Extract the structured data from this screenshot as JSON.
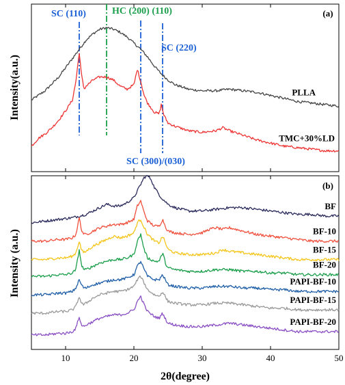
{
  "chart_data": {
    "type": "line",
    "xlabel": "2θ(degree)",
    "xlim": [
      5,
      50
    ],
    "xticks": [
      10,
      20,
      30,
      40,
      50
    ],
    "grid": false,
    "panels": [
      {
        "panel_label": "(a)",
        "ylabel": "Intensity(a.u.)",
        "ylim": [
          0,
          100
        ],
        "series": [
          {
            "name": "PLLA",
            "color": "#444444",
            "x": [
              5,
              7,
              9,
              11,
              12,
              13,
              14,
              15,
              16,
              17,
              18,
              19,
              20,
              21,
              22,
              23,
              24,
              25,
              26,
              28,
              30,
              32,
              34,
              36,
              38,
              40,
              42,
              44,
              46,
              48,
              50
            ],
            "y": [
              43,
              49,
              58,
              70,
              76,
              82,
              86,
              89,
              90,
              89,
              87,
              84,
              80,
              76,
              71,
              65,
              60,
              56,
              53,
              50,
              49,
              49,
              50,
              49,
              48,
              46,
              44,
              42,
              41,
              40,
              39
            ]
          },
          {
            "name": "TMC+30%LD",
            "color": "#ee3333",
            "x": [
              5,
              6,
              7,
              8,
              9,
              10,
              11,
              11.5,
              12,
              12.3,
              12.7,
              13,
              14,
              15,
              16,
              17,
              18,
              19,
              20,
              20.5,
              21,
              21.5,
              22,
              23,
              23.7,
              24,
              24.4,
              25,
              26,
              28,
              30,
              32,
              33,
              34,
              36,
              38,
              40,
              42,
              44,
              46,
              48,
              50
            ],
            "y": [
              13,
              18,
              21,
              25,
              30,
              36,
              43,
              55,
              74,
              60,
              50,
              52,
              56,
              58,
              58,
              56,
              52,
              50,
              53,
              63,
              55,
              46,
              41,
              35,
              34,
              40,
              33,
              28,
              26,
              23,
              22,
              23,
              25,
              23,
              20,
              17,
              15,
              13,
              12,
              11,
              10,
              10
            ]
          }
        ],
        "annotations": [
          {
            "text": "SC (110)",
            "x": 12,
            "color": "#1a5fd6",
            "line": "dashdot"
          },
          {
            "text": "HC (200) (110)",
            "x": 16,
            "color": "#1a9e4a",
            "line": "dashdot"
          },
          {
            "text": "SC (300)/(030)",
            "x": 21,
            "color": "#1a5fd6",
            "line": "dashdot"
          },
          {
            "text": "SC (220)",
            "x": 24.2,
            "color": "#1a5fd6",
            "line": "dashdot"
          }
        ]
      },
      {
        "panel_label": "(b)",
        "ylabel": "Intensity (a.u.)",
        "ylim": [
          0,
          100
        ],
        "series": [
          {
            "name": "BF",
            "color": "#2a2a5c",
            "x": [
              5,
              7,
              9,
              11,
              12,
              13,
              14,
              15,
              16,
              17,
              18,
              19,
              20,
              20.5,
              21,
              21.5,
              22,
              22.5,
              23,
              24,
              25,
              26,
              28,
              30,
              32,
              34,
              36,
              38,
              40,
              42,
              44,
              46,
              48,
              50
            ],
            "y": [
              74,
              75,
              76,
              77,
              78,
              79,
              81,
              83,
              85,
              84,
              84,
              86,
              89,
              93,
              97,
              101,
              102,
              100,
              95,
              89,
              85,
              83,
              81,
              81,
              82,
              83,
              83,
              82,
              81,
              80,
              79,
              79,
              78,
              78
            ]
          },
          {
            "name": "BF-10",
            "color": "#f0503c",
            "x": [
              5,
              7,
              9,
              10,
              11,
              11.5,
              12,
              12.3,
              12.7,
              13,
              14,
              15,
              16,
              17,
              18,
              19,
              20,
              20.5,
              21,
              21.5,
              22,
              23,
              23.7,
              24.2,
              24.7,
              25,
              26,
              28,
              30,
              31,
              32,
              33,
              34,
              36,
              38,
              40,
              42,
              44,
              46,
              48,
              50
            ],
            "y": [
              63,
              63,
              64,
              64,
              65,
              67,
              77,
              70,
              67,
              67,
              69,
              71,
              72,
              73,
              73,
              74,
              76,
              84,
              87,
              80,
              75,
              72,
              72,
              76,
              71,
              69,
              68,
              67,
              68,
              70,
              71,
              70,
              71,
              69,
              67,
              66,
              65,
              64,
              63,
              63,
              63
            ]
          },
          {
            "name": "BF-15",
            "color": "#f5c518",
            "x": [
              5,
              7,
              9,
              10,
              11,
              11.5,
              12,
              12.3,
              12.7,
              13,
              14,
              15,
              16,
              17,
              18,
              19,
              20,
              20.5,
              21,
              21.5,
              22,
              23,
              23.7,
              24.2,
              24.7,
              25,
              26,
              28,
              30,
              32,
              33,
              34,
              36,
              38,
              40,
              42,
              44,
              46,
              48,
              50
            ],
            "y": [
              52,
              52,
              53,
              53,
              54,
              56,
              63,
              58,
              56,
              57,
              60,
              62,
              64,
              66,
              65,
              66,
              68,
              74,
              76,
              71,
              67,
              63,
              62,
              66,
              61,
              58,
              56,
              55,
              55,
              56,
              58,
              57,
              56,
              55,
              54,
              53,
              52,
              52,
              52,
              52
            ]
          },
          {
            "name": "BF-20",
            "color": "#1a9e4a",
            "x": [
              5,
              7,
              9,
              10,
              11,
              11.5,
              12,
              12.3,
              12.7,
              13,
              14,
              15,
              16,
              17,
              18,
              19,
              20,
              20.5,
              21,
              21.5,
              22,
              23,
              23.7,
              24.2,
              24.7,
              25,
              26,
              28,
              30,
              32,
              34,
              36,
              38,
              40,
              42,
              44,
              46,
              48,
              50
            ],
            "y": [
              42,
              42,
              43,
              43,
              44,
              46,
              58,
              49,
              46,
              46,
              48,
              50,
              51,
              52,
              52,
              53,
              55,
              63,
              67,
              58,
              53,
              51,
              51,
              56,
              49,
              47,
              46,
              45,
              45,
              46,
              46,
              45,
              45,
              44,
              44,
              43,
              43,
              43,
              43
            ]
          },
          {
            "name": "PAPI-BF-10",
            "color": "#1f5fa8",
            "x": [
              5,
              7,
              9,
              10,
              11,
              11.5,
              12,
              12.3,
              12.7,
              13,
              14,
              15,
              16,
              17,
              18,
              19,
              20,
              20.5,
              21,
              21.5,
              22,
              23,
              23.7,
              24.2,
              24.7,
              25,
              26,
              28,
              30,
              32,
              34,
              36,
              38,
              40,
              42,
              44,
              46,
              48,
              50
            ],
            "y": [
              31,
              31,
              32,
              32,
              33,
              35,
              40,
              37,
              35,
              35,
              37,
              38,
              39,
              40,
              40,
              41,
              43,
              48,
              51,
              46,
              42,
              40,
              40,
              43,
              39,
              37,
              36,
              35,
              35,
              36,
              36,
              35,
              35,
              34,
              34,
              33,
              33,
              33,
              33
            ]
          },
          {
            "name": "PAPI-BF-15",
            "color": "#999999",
            "x": [
              5,
              7,
              9,
              10,
              11,
              11.5,
              12,
              12.3,
              12.7,
              13,
              14,
              15,
              16,
              17,
              18,
              19,
              20,
              20.5,
              21,
              21.5,
              22,
              23,
              23.7,
              24.2,
              24.7,
              25,
              26,
              28,
              30,
              32,
              34,
              36,
              38,
              40,
              42,
              44,
              46,
              48,
              50
            ],
            "y": [
              20,
              20,
              21,
              21,
              22,
              24,
              30,
              26,
              25,
              26,
              29,
              31,
              32,
              33,
              33,
              34,
              36,
              40,
              42,
              38,
              34,
              31,
              30,
              33,
              29,
              27,
              26,
              25,
              25,
              26,
              26,
              25,
              24,
              23,
              23,
              22,
              22,
              22,
              22
            ]
          },
          {
            "name": "PAPI-BF-20",
            "color": "#8a4fc4",
            "x": [
              5,
              7,
              9,
              10,
              11,
              11.5,
              12,
              12.3,
              12.7,
              13,
              14,
              15,
              16,
              17,
              18,
              19,
              20,
              20.5,
              21,
              21.5,
              22,
              23,
              23.7,
              24.2,
              24.7,
              25,
              26,
              28,
              30,
              32,
              34,
              36,
              38,
              40,
              42,
              44,
              46,
              48,
              50
            ],
            "y": [
              7,
              7,
              8,
              8,
              9,
              11,
              18,
              13,
              12,
              13,
              15,
              17,
              18,
              19,
              19,
              20,
              22,
              27,
              30,
              25,
              21,
              18,
              17,
              20,
              16,
              14,
              13,
              12,
              12,
              13,
              14,
              13,
              12,
              11,
              10,
              9,
              9,
              9,
              9
            ]
          }
        ]
      }
    ]
  }
}
